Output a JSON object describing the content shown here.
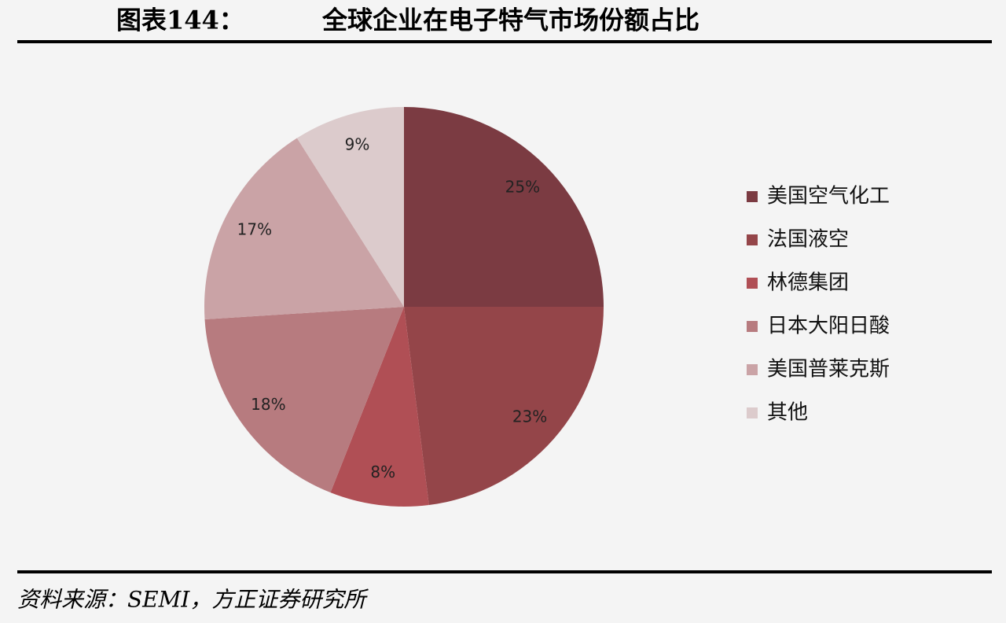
{
  "chart_data": {
    "type": "pie",
    "figure_number": "图表144：",
    "title": "全球企业在电子特气市场份额占比",
    "categories": [
      "美国空气化工",
      "法国液空",
      "林德集团",
      "日本大阳日酸",
      "美国普莱克斯",
      "其他"
    ],
    "values": [
      25,
      23,
      8,
      18,
      17,
      9
    ],
    "value_labels": [
      "25%",
      "23%",
      "8%",
      "18%",
      "17%",
      "9%"
    ],
    "colors": [
      "#7b3b42",
      "#944549",
      "#b04f55",
      "#b77b7f",
      "#caa3a6",
      "#dccbcc"
    ],
    "legend": "right",
    "source": "资料来源：SEMI，方正证券研究所"
  }
}
